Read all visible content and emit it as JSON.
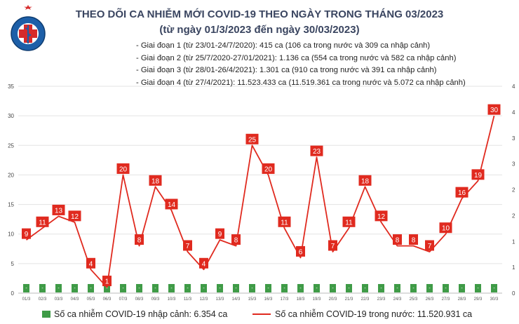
{
  "header": {
    "title": "THEO DÕI CA NHIỄM MỚI COVID-19 THEO NGÀY TRONG THÁNG 03/2023",
    "subtitle": "(từ ngày 01/3/2023 đến ngày 30/03/2023)",
    "logo_text_top": "BỘ Y TẾ",
    "logo_text_bottom": "MINISTRY OF HEALTH"
  },
  "notes": [
    "- Giai đoạn 1 (từ 23/01-24/7/2020): 415 ca (106 ca trong nước và 309 ca nhập cảnh)",
    "- Giai đoạn 2 (từ 25/7/2020-27/01/2021): 1.136 ca (554 ca trong nước và 582 ca nhập cảnh)",
    "- Giai đoạn 3 (từ 28/01-26/4/2021): 1.301 ca (910 ca trong nước và 391 ca nhập cảnh)",
    "- Giai đoạn 4 (từ 27/4/2021): 11.523.433 ca (11.519.361 ca trong nước và 5.072 ca nhập cảnh)"
  ],
  "legend": {
    "imported": "Số ca nhiễm COVID-19 nhập cảnh: 6.354 ca",
    "domestic": "Số ca nhiễm COVID-19 trong nước: 11.520.931 ca"
  },
  "colors": {
    "line": "#e02a1f",
    "label_bg": "#e02a1f",
    "bar": "#3f9b47",
    "grid": "#e3e3e3"
  },
  "chart_data": {
    "type": "bar",
    "categories": [
      "01/3",
      "02/3",
      "03/3",
      "04/3",
      "05/3",
      "06/3",
      "07/3",
      "08/3",
      "09/3",
      "10/3",
      "11/3",
      "12/3",
      "13/3",
      "14/3",
      "15/3",
      "16/3",
      "17/3",
      "18/3",
      "19/3",
      "20/3",
      "21/3",
      "22/3",
      "23/3",
      "24/3",
      "25/3",
      "26/3",
      "27/3",
      "28/3",
      "29/3",
      "30/3"
    ],
    "series": [
      {
        "name": "Số ca nhiễm COVID-19 nhập cảnh",
        "type": "bar",
        "axis": "right",
        "values": [
          0,
          0,
          0,
          0,
          0,
          0,
          0,
          0,
          0,
          0,
          0,
          0,
          0,
          0,
          0,
          0,
          0,
          0,
          0,
          0,
          0,
          0,
          0,
          0,
          0,
          0,
          0,
          0,
          0,
          0
        ],
        "labels": [
          "-",
          "-",
          "-",
          "-",
          "-",
          "-",
          "-",
          "-",
          "-",
          "-",
          "-",
          "-",
          "-",
          "-",
          "-",
          "-",
          "-",
          "-",
          "-",
          "-",
          "-",
          "-",
          "-",
          "-",
          "-",
          "-",
          "-",
          "-",
          "-",
          "-"
        ]
      },
      {
        "name": "Số ca nhiễm COVID-19 trong nước",
        "type": "line",
        "axis": "left",
        "values": [
          9,
          11,
          13,
          12,
          4,
          1,
          20,
          8,
          18,
          14,
          7,
          4,
          9,
          8,
          25,
          20,
          11,
          6,
          23,
          7,
          11,
          18,
          12,
          8,
          8,
          7,
          10,
          16,
          19,
          30
        ]
      }
    ],
    "ylim": [
      0,
      35
    ],
    "yticks": [
      "0",
      "5",
      "10",
      "15",
      "20",
      "25",
      "30",
      "35"
    ],
    "y2lim": [
      0,
      4
    ],
    "y2ticks": [
      "0",
      "1",
      "1",
      "2",
      "2",
      "3",
      "3",
      "4",
      "4"
    ],
    "grid": true,
    "legend_position": "bottom"
  }
}
